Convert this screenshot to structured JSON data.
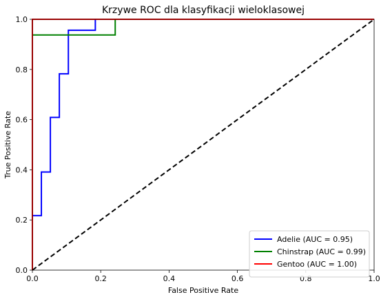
{
  "chart_data": {
    "type": "line",
    "title": "Krzywe ROC dla klasyfikacji wieloklasowej",
    "xlabel": "False Positive Rate",
    "ylabel": "True Positive Rate",
    "xlim": [
      0.0,
      1.0
    ],
    "ylim": [
      0.0,
      1.0
    ],
    "xticks": [
      "0.0",
      "0.2",
      "0.4",
      "0.6",
      "0.8",
      "1.0"
    ],
    "yticks": [
      "0.0",
      "0.2",
      "0.4",
      "0.6",
      "0.8",
      "1.0"
    ],
    "grid": false,
    "legend_position": "bottom-right",
    "series": [
      {
        "name": "Adelie (AUC = 0.95)",
        "color": "#0000ff",
        "x": [
          0.0,
          0.0,
          0.0263,
          0.0263,
          0.0526,
          0.0526,
          0.0789,
          0.0789,
          0.1053,
          0.1053,
          0.1842,
          0.1842,
          1.0
        ],
        "y": [
          0.0,
          0.2174,
          0.2174,
          0.3913,
          0.3913,
          0.6087,
          0.6087,
          0.7826,
          0.7826,
          0.9565,
          0.9565,
          1.0,
          1.0
        ]
      },
      {
        "name": "Chinstrap (AUC = 0.99)",
        "color": "#008000",
        "x": [
          0.0,
          0.0,
          0.2424,
          0.2424,
          1.0
        ],
        "y": [
          0.0,
          0.9375,
          0.9375,
          1.0,
          1.0
        ]
      },
      {
        "name": "Gentoo (AUC = 1.00)",
        "color": "#ff0000",
        "x": [
          0.0,
          0.0,
          1.0
        ],
        "y": [
          0.0,
          1.0,
          1.0
        ]
      }
    ],
    "reference_line": {
      "color": "#000000",
      "style": "dashed",
      "x": [
        0.0,
        1.0
      ],
      "y": [
        0.0,
        1.0
      ]
    }
  }
}
